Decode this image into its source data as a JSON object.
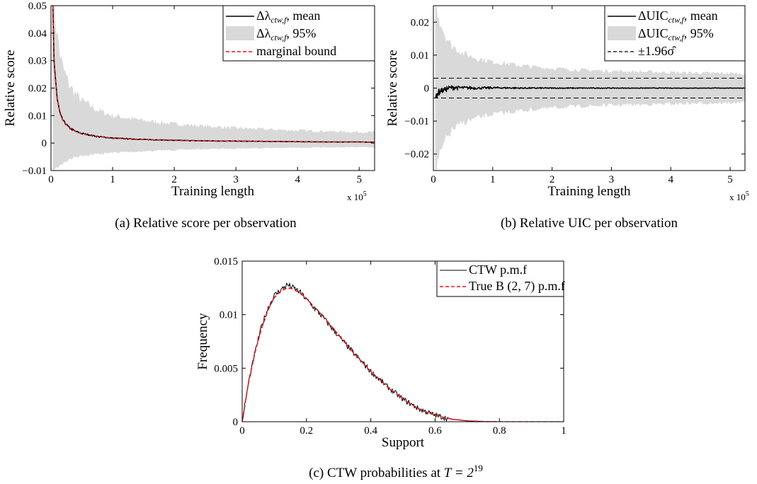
{
  "chart_data": [
    {
      "type": "line",
      "caption": "(a)  Relative score per observation",
      "xlabel": "Training length",
      "ylabel": "Relative score",
      "x_multiplier": "x 10",
      "x_multiplier_exp": "5",
      "xlim": [
        0,
        5.25
      ],
      "ylim": [
        -0.01,
        0.05
      ],
      "xticks": [
        "0",
        "1",
        "2",
        "3",
        "4",
        "5"
      ],
      "yticks": [
        "−0.01",
        "0",
        "0.01",
        "0.02",
        "0.03",
        "0.04",
        "0.05"
      ],
      "x": [
        0.03,
        0.05,
        0.1,
        0.15,
        0.2,
        0.3,
        0.4,
        0.5,
        0.75,
        1.0,
        1.5,
        2.0,
        2.5,
        3.0,
        3.5,
        4.0,
        4.5,
        5.0,
        5.25
      ],
      "series": [
        {
          "name": "Δλ_ctw,f, mean",
          "values": [
            0.05,
            0.03,
            0.016,
            0.0105,
            0.008,
            0.0055,
            0.0042,
            0.0035,
            0.0024,
            0.0018,
            0.0013,
            0.001,
            0.0008,
            0.0007,
            0.0006,
            0.0005,
            0.0004,
            0.0004,
            0.0003
          ]
        },
        {
          "name": "Δλ_ctw,f, 95%",
          "lower": [
            -0.01,
            -0.01,
            -0.009,
            -0.008,
            -0.007,
            -0.006,
            -0.005,
            -0.0045,
            -0.004,
            -0.0035,
            -0.003,
            -0.0025,
            -0.0022,
            -0.002,
            -0.0018,
            -0.0017,
            -0.0016,
            -0.0015,
            -0.0015
          ],
          "upper": [
            0.05,
            0.05,
            0.04,
            0.032,
            0.027,
            0.021,
            0.018,
            0.0155,
            0.012,
            0.01,
            0.0082,
            0.007,
            0.0062,
            0.0055,
            0.005,
            0.0046,
            0.0043,
            0.004,
            0.004
          ]
        },
        {
          "name": "marginal bound",
          "values": [
            0.05,
            0.03,
            0.016,
            0.0105,
            0.008,
            0.0055,
            0.0042,
            0.0035,
            0.0024,
            0.0018,
            0.0013,
            0.001,
            0.0008,
            0.0007,
            0.0006,
            0.0005,
            0.0004,
            0.0004,
            0.0003
          ]
        }
      ],
      "legend": [
        {
          "main": "Δλ",
          "sub": "ctw,f",
          "rest": ", mean",
          "style": "line"
        },
        {
          "main": "Δλ",
          "sub": "ctw,f",
          "rest": ", 95%",
          "style": "band"
        },
        {
          "main": "marginal bound",
          "sub": "",
          "rest": "",
          "style": "dashed-red"
        }
      ],
      "legend_position": "top-right",
      "colors": {
        "mean": "#000000",
        "band": "#d9d9d9",
        "bound": "#e8101a"
      }
    },
    {
      "type": "line",
      "caption": "(b)  Relative UIC per observation",
      "xlabel": "Training length",
      "ylabel": "Relative score",
      "x_multiplier": "x 10",
      "x_multiplier_exp": "5",
      "xlim": [
        0,
        5.25
      ],
      "ylim": [
        -0.025,
        0.025
      ],
      "xticks": [
        "0",
        "1",
        "2",
        "3",
        "4",
        "5"
      ],
      "yticks": [
        "−0.02",
        "−0.01",
        "0",
        "0.01",
        "0.02"
      ],
      "x": [
        0.03,
        0.05,
        0.1,
        0.2,
        0.3,
        0.5,
        0.75,
        1.0,
        1.5,
        2.0,
        2.5,
        3.0,
        3.5,
        4.0,
        4.5,
        5.0,
        5.25
      ],
      "series": [
        {
          "name": "ΔUIC_ctw,f, mean",
          "values": [
            -0.004,
            -0.002,
            -0.001,
            -0.0004,
            0.0002,
            0.0001,
            0.0,
            0.0001,
            0.0,
            0.0,
            0.0,
            0.0,
            0.0,
            0.0,
            0.0,
            0.0,
            0.0
          ]
        },
        {
          "name": "ΔUIC_ctw,f, 95%",
          "lower": [
            -0.025,
            -0.025,
            -0.021,
            -0.016,
            -0.013,
            -0.0105,
            -0.009,
            -0.008,
            -0.0068,
            -0.006,
            -0.0055,
            -0.0052,
            -0.005,
            -0.0048,
            -0.0046,
            -0.0045,
            -0.0044
          ],
          "upper": [
            0.025,
            0.025,
            0.021,
            0.016,
            0.013,
            0.0105,
            0.009,
            0.008,
            0.0068,
            0.006,
            0.0055,
            0.0052,
            0.005,
            0.0048,
            0.0046,
            0.0045,
            0.0044
          ]
        },
        {
          "name": "±1.96σ̂",
          "constant": [
            -0.003,
            0.003
          ]
        }
      ],
      "legend": [
        {
          "main": "ΔUIC",
          "sub": "ctw,f",
          "rest": ", mean",
          "style": "line"
        },
        {
          "main": "ΔUIC",
          "sub": "ctw,f",
          "rest": ", 95%",
          "style": "band"
        },
        {
          "main": "±1.96σ̂",
          "sub": "",
          "rest": "",
          "style": "dashed-black"
        }
      ],
      "legend_position": "top-right",
      "colors": {
        "mean": "#000000",
        "band": "#d9d9d9",
        "bound": "#000000"
      }
    },
    {
      "type": "line",
      "caption_prefix": "(c)  CTW probabilities at ",
      "caption_math": "T = 2",
      "caption_exp": "19",
      "xlabel": "Support",
      "ylabel": "Frequency",
      "xlim": [
        0,
        1
      ],
      "ylim": [
        0,
        0.015
      ],
      "xticks": [
        "0",
        "0.2",
        "0.4",
        "0.6",
        "0.8",
        "1"
      ],
      "yticks": [
        "0",
        "0.005",
        "0.01",
        "0.015"
      ],
      "x": [
        0,
        0.02,
        0.04,
        0.06,
        0.08,
        0.1,
        0.12,
        0.14,
        0.16,
        0.18,
        0.2,
        0.25,
        0.3,
        0.35,
        0.4,
        0.45,
        0.5,
        0.55,
        0.6,
        0.65,
        0.7,
        0.75,
        0.8,
        0.9,
        1.0
      ],
      "series": [
        {
          "name": "CTW p.m.f",
          "values": [
            0,
            0.0037,
            0.0065,
            0.0089,
            0.0106,
            0.0118,
            0.0123,
            0.0128,
            0.0125,
            0.0121,
            0.0114,
            0.0098,
            0.008,
            0.0063,
            0.0047,
            0.0033,
            0.0021,
            0.0012,
            0.0006,
            0.00025,
            8e-05,
            2e-05,
            0,
            0,
            0
          ]
        },
        {
          "name": "True B (2, 7) p.m.f",
          "values": [
            0,
            0.0037,
            0.0065,
            0.0087,
            0.0104,
            0.0116,
            0.0122,
            0.0125,
            0.0124,
            0.012,
            0.0115,
            0.0099,
            0.0081,
            0.0063,
            0.0047,
            0.0033,
            0.0021,
            0.0012,
            0.0006,
            0.00025,
            8e-05,
            2e-05,
            0,
            0,
            0
          ]
        }
      ],
      "legend": [
        {
          "main": "CTW p.m.f",
          "sub": "",
          "rest": "",
          "style": "thin-line"
        },
        {
          "main": "True B (2, 7) p.m.f",
          "sub": "",
          "rest": "",
          "style": "dashed-red"
        }
      ],
      "legend_position": "top-right",
      "colors": {
        "pmf": "#000000",
        "true": "#e8101a"
      }
    }
  ]
}
